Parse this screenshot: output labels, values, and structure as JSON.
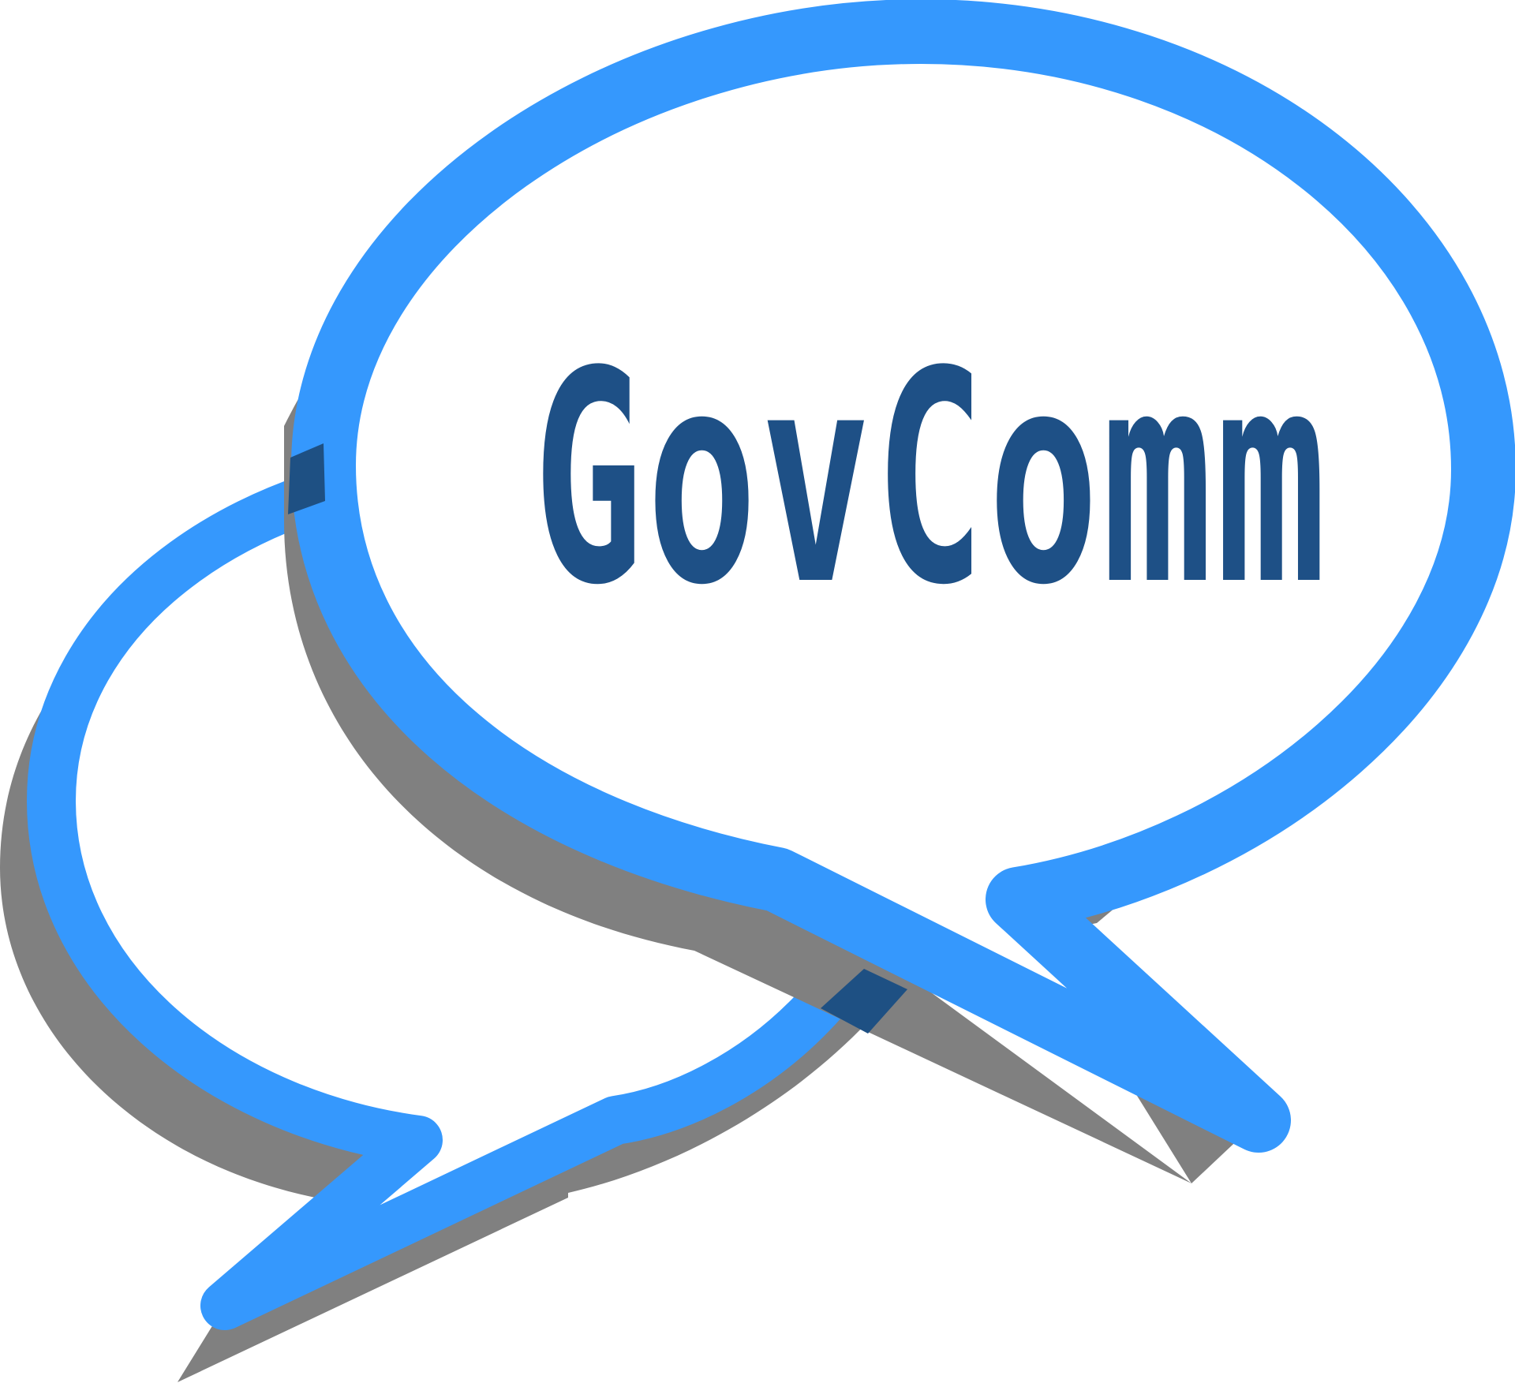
{
  "logo": {
    "wordmark": "GovComm",
    "colors": {
      "bubble_stroke": "#3598fd",
      "shadow": "#808080",
      "overlap": "#1e5083",
      "wordmark": "#1e5086",
      "fill": "#ffffff",
      "background": "#ffffff"
    },
    "icon_names": [
      "back-speech-bubble-icon",
      "front-speech-bubble-icon"
    ]
  }
}
